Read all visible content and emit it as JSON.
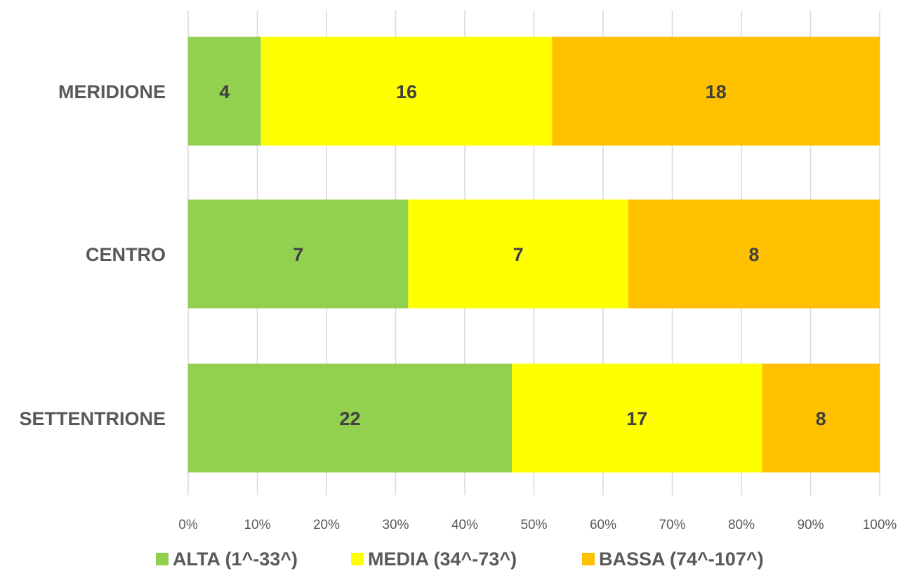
{
  "chart_data": {
    "type": "bar",
    "orientation": "horizontal",
    "stacking": "percent",
    "categories": [
      "MERIDIONE",
      "CENTRO",
      "SETTENTRIONE"
    ],
    "series": [
      {
        "name": "ALTA (1^-33^)",
        "values": [
          4,
          7,
          22
        ],
        "color": "#92d050"
      },
      {
        "name": "MEDIA (34^-73^)",
        "values": [
          16,
          7,
          17
        ],
        "color": "#ffff00"
      },
      {
        "name": "BASSA (74^-107^)",
        "values": [
          18,
          8,
          8
        ],
        "color": "#ffc000"
      }
    ],
    "x_ticks": [
      "0%",
      "10%",
      "20%",
      "30%",
      "40%",
      "50%",
      "60%",
      "70%",
      "80%",
      "90%",
      "100%"
    ],
    "xlim": [
      0,
      100
    ],
    "grid": "vertical",
    "legend": "bottom",
    "title": "",
    "xlabel": "",
    "ylabel": ""
  }
}
